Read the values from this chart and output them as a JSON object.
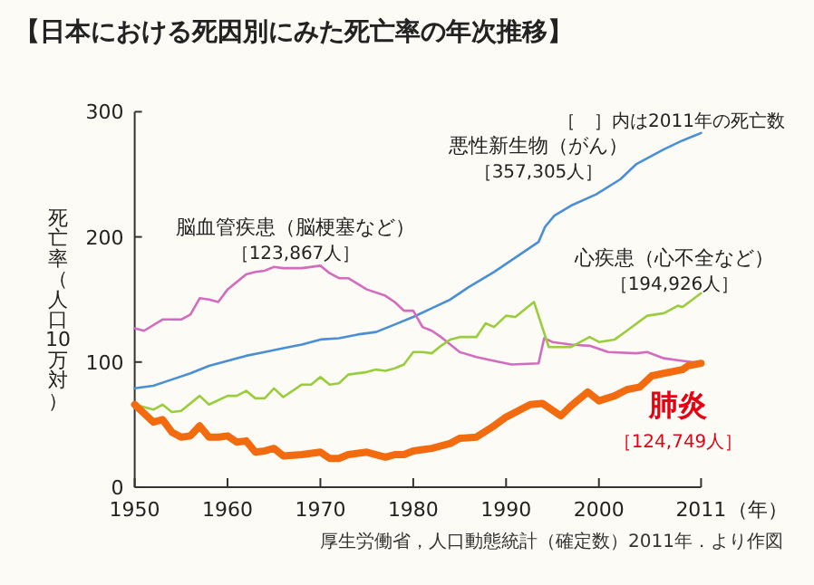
{
  "chart_data": {
    "type": "line",
    "title": "【日本における死因別にみた死亡率の年次推移】",
    "ylabel": "死亡率（人口10万対）",
    "xlabel": "（年）",
    "xlim": [
      1950,
      2011
    ],
    "xticks": [
      1950,
      1960,
      1970,
      1980,
      1990,
      2000,
      2011
    ],
    "ylim": [
      0,
      300
    ],
    "yticks": [
      0,
      100,
      200,
      300
    ],
    "grid": false,
    "marker": "none",
    "line_style": "solid",
    "series": [
      {
        "name": "悪性新生物（がん）",
        "color": "#4a8fd6",
        "x": [
          1950,
          1952,
          1954,
          1956,
          1958,
          1960,
          1962,
          1964,
          1966,
          1968,
          1970,
          1972,
          1974,
          1976,
          1978,
          1980,
          1982,
          1984,
          1986,
          1988.7,
          1991.3,
          1993.5,
          1994.2,
          1995.2,
          1997,
          1999.7,
          2002.3,
          2004,
          2007,
          2009,
          2011
        ],
        "values": [
          79,
          81,
          86,
          91,
          97,
          101,
          105,
          108,
          111,
          114,
          118,
          119,
          122,
          124,
          130,
          136,
          143,
          150,
          160,
          172,
          185,
          196,
          208,
          217,
          225,
          234,
          246,
          258,
          270,
          277,
          283
        ]
      },
      {
        "name": "脳血管疾患（脳梗塞など）",
        "color": "#d36bbf",
        "x": [
          1950,
          1951,
          1953,
          1955,
          1956,
          1957,
          1958,
          1959,
          1960,
          1962,
          1963,
          1964,
          1965,
          1966,
          1968,
          1970,
          1971,
          1972,
          1973,
          1975,
          1977,
          1978,
          1979,
          1980,
          1981,
          1982,
          1983,
          1985,
          1986.8,
          1988.7,
          1990.6,
          1993.5,
          1994.1,
          1995,
          1997,
          1999,
          2001,
          2004,
          2005.2,
          2007,
          2009,
          2011
        ],
        "values": [
          127,
          125,
          134,
          134,
          138,
          151,
          150,
          148,
          158,
          170,
          172,
          173,
          176,
          175,
          175,
          177,
          171,
          167,
          167,
          158,
          153,
          148,
          141,
          141,
          128,
          125,
          120,
          108,
          104,
          101,
          98,
          99,
          119,
          116,
          114,
          113,
          108,
          107,
          108,
          103,
          101,
          99
        ]
      },
      {
        "name": "心疾患（心不全など）",
        "color": "#9acd3c",
        "x": [
          1950,
          1951,
          1952,
          1953,
          1954,
          1955,
          1957,
          1958,
          1960,
          1961,
          1962,
          1963,
          1964,
          1965,
          1966,
          1967,
          1968,
          1969,
          1970,
          1971,
          1972,
          1973,
          1975,
          1976,
          1977,
          1978,
          1979,
          1980,
          1981,
          1982,
          1983,
          1984,
          1985,
          1986.8,
          1987.8,
          1988.7,
          1990,
          1991,
          1993,
          1994.6,
          1997,
          1999,
          2000,
          2001.7,
          2003,
          2005.2,
          2007,
          2008.5,
          2009,
          2011
        ],
        "values": [
          66,
          64,
          62,
          66,
          60,
          61,
          73,
          66,
          73,
          73,
          77,
          71,
          71,
          79,
          72,
          77,
          82,
          82,
          88,
          82,
          83,
          90,
          92,
          94,
          93,
          95,
          98,
          108,
          108,
          107,
          113,
          118,
          120,
          120,
          131,
          128,
          137,
          136,
          148,
          112,
          112,
          120,
          116,
          118,
          125,
          137,
          139,
          145,
          144,
          155
        ]
      },
      {
        "name": "肺炎",
        "color": "#f26b0f",
        "x": [
          1950,
          1951,
          1952,
          1953,
          1954,
          1955,
          1956,
          1957,
          1958,
          1959,
          1960,
          1961,
          1962,
          1963,
          1964,
          1965,
          1966,
          1968,
          1970,
          1971,
          1972,
          1973,
          1975,
          1976,
          1977,
          1978,
          1979,
          1980,
          1981,
          1982,
          1983,
          1984,
          1985,
          1986.8,
          1988.7,
          1990,
          1992.6,
          1993.9,
          1995.9,
          1997,
          1998.8,
          2000,
          2001.7,
          2003,
          2004.4,
          2005.7,
          2007,
          2009,
          2009.6,
          2011
        ],
        "values": [
          66,
          59,
          52,
          54,
          44,
          40,
          41,
          49,
          40,
          40,
          41,
          36,
          37,
          28,
          29,
          31,
          25,
          26,
          28,
          23,
          23,
          26,
          28,
          26,
          24,
          26,
          26,
          29,
          30,
          31,
          33,
          35,
          39,
          40,
          49,
          56,
          66,
          67,
          57,
          65,
          76,
          69,
          73,
          78,
          80,
          89,
          91,
          94,
          97,
          99
        ]
      }
    ],
    "annotations": [
      "［357,305人］",
      "［123,867人］",
      "［194,926人］",
      "［124,749人］",
      "［　］内は2011年の死亡数",
      "厚生労働省，人口動態統計（確定数）2011年．より作図"
    ]
  }
}
